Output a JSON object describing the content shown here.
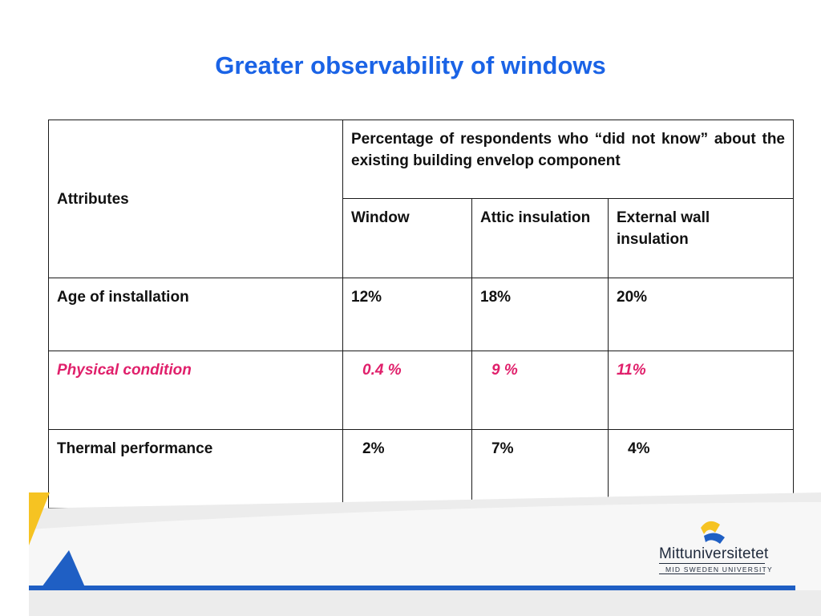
{
  "slide": {
    "title": "Greater observability of windows"
  },
  "table": {
    "header": {
      "attributes": "Attributes",
      "group_heading": "Percentage of respondents who “did not know” about the existing building envelop component",
      "columns": [
        "Window",
        "Attic insulation",
        "External wall insulation"
      ]
    },
    "rows": [
      {
        "label": "Age of installation",
        "values": [
          "12%",
          "18%",
          "20%"
        ],
        "highlight": false
      },
      {
        "label": "Physical condition",
        "values": [
          "0.4 %",
          "9 %",
          "11%"
        ],
        "highlight": true
      },
      {
        "label": "Thermal performance",
        "values": [
          "2%",
          "7%",
          "4%"
        ],
        "highlight": false
      }
    ]
  },
  "logo": {
    "name": "Mittuniversitetet",
    "subtitle": "MID SWEDEN UNIVERSITY"
  },
  "colors": {
    "title": "#1a63e6",
    "highlight_text": "#e0206b",
    "deco_yellow": "#f6c322",
    "deco_blue": "#1f5fc4",
    "deco_gray": "#e6e6e6"
  }
}
